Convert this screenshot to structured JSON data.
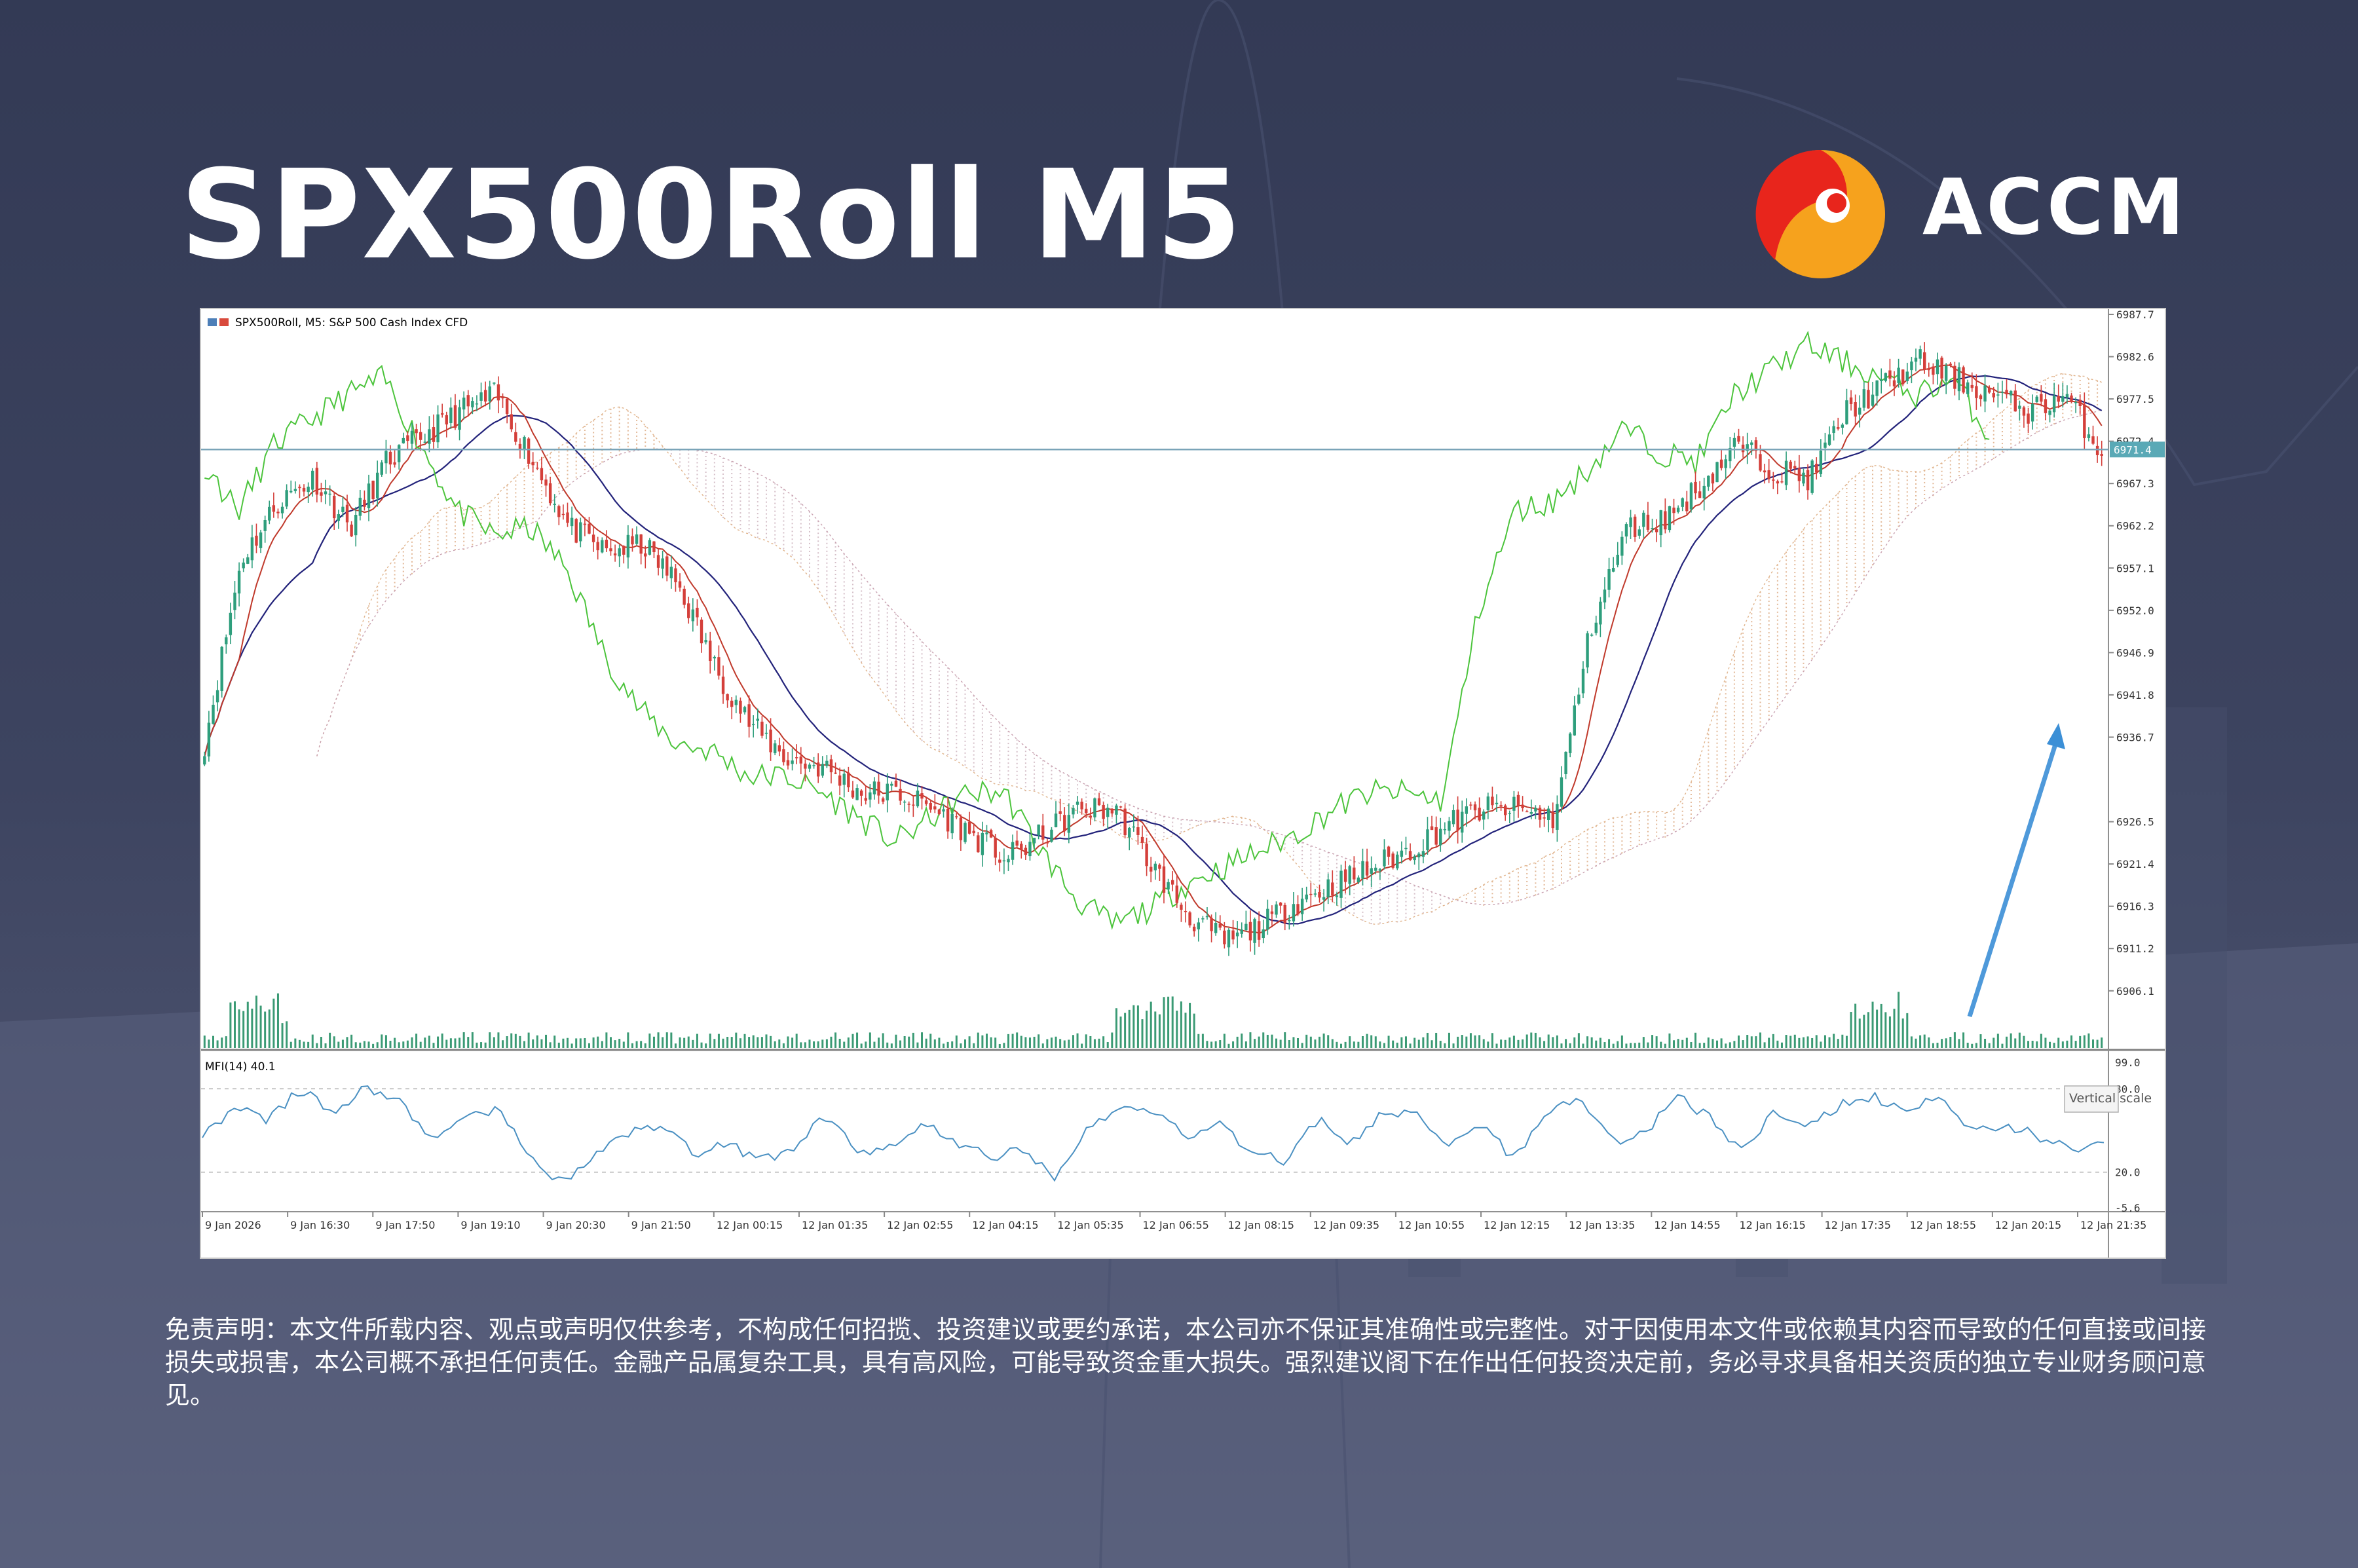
{
  "headline": "SPX500Roll M5",
  "brand": {
    "name": "ACCM",
    "logo_colors": [
      "#e8251c",
      "#f6a21d"
    ]
  },
  "chart_data": [
    {
      "type": "candlestick",
      "title": "SPX500Roll, M5:  S&P 500 Cash Index CFD",
      "price_axis": [
        "6987.7",
        "6982.6",
        "6977.5",
        "6972.4",
        "6967.3",
        "6962.2",
        "6957.1",
        "6952.0",
        "6946.9",
        "6941.8",
        "6936.7",
        "6926.5",
        "6921.4",
        "6916.3",
        "6911.2",
        "6906.1"
      ],
      "ylim": [
        6903.0,
        6987.7
      ],
      "current_price_label": "6971.4",
      "current_price": 6971.4,
      "time_axis": [
        "9 Jan 2026",
        "9 Jan 16:30",
        "9 Jan 17:50",
        "9 Jan 19:10",
        "9 Jan 20:30",
        "9 Jan 21:50",
        "12 Jan 00:15",
        "12 Jan 01:35",
        "12 Jan 02:55",
        "12 Jan 04:15",
        "12 Jan 05:35",
        "12 Jan 06:55",
        "12 Jan 08:15",
        "12 Jan 09:35",
        "12 Jan 10:55",
        "12 Jan 12:15",
        "12 Jan 13:35",
        "12 Jan 14:55",
        "12 Jan 16:15",
        "12 Jan 17:35",
        "12 Jan 18:55",
        "12 Jan 20:15",
        "12 Jan 21:35"
      ],
      "tooltip": "Vertical scale",
      "price_path": [
        6936,
        6958,
        6965,
        6968,
        6962,
        6970,
        6973,
        6976,
        6978,
        6970,
        6962,
        6959,
        6960,
        6955,
        6945,
        6938,
        6934,
        6933,
        6930,
        6930,
        6928,
        6925,
        6922,
        6925,
        6928,
        6928,
        6921,
        6915,
        6912,
        6914,
        6917,
        6919,
        6921,
        6923,
        6926,
        6928,
        6928,
        6927,
        6950,
        6962,
        6963,
        6967,
        6972,
        6969,
        6968,
        6976,
        6979,
        6982,
        6980,
        6978,
        6976,
        6978,
        6971
      ],
      "colors": {
        "up": "#2e9e7c",
        "down": "#d43f3a",
        "tenkan": "#c0392b",
        "kijun": "#22227a",
        "chikou": "#4cc43c",
        "cloud": "#d8a074",
        "arrow": "#3b8fd6"
      }
    },
    {
      "type": "line",
      "title": "MFI(14) 40.1",
      "y_axis": [
        "99.0",
        "80.0",
        "20.0",
        "-5.6"
      ],
      "ylim": [
        -5.6,
        99.0
      ],
      "levels": [
        80,
        20
      ],
      "values": [
        48,
        65,
        58,
        80,
        62,
        82,
        70,
        45,
        56,
        68,
        28,
        12,
        35,
        48,
        55,
        32,
        40,
        28,
        38,
        60,
        35,
        38,
        55,
        42,
        30,
        38,
        14,
        50,
        70,
        65,
        45,
        55,
        35,
        28,
        58,
        40,
        62,
        65,
        40,
        55,
        30,
        64,
        70,
        42,
        48,
        76,
        58,
        36,
        64,
        52,
        68,
        74,
        62,
        75,
        50,
        55,
        45,
        38,
        40
      ],
      "color": "#4a90c2"
    }
  ],
  "disclaimer": "免责声明：本文件所载内容、观点或声明仅供参考，不构成任何招揽、投资建议或要约承诺，本公司亦不保证其准确性或完整性。对于因使用本文件或依赖其内容而导致的任何直接或间接损失或损害，本公司概不承担任何责任。金融产品属复杂工具，具有高风险，可能导致资金重大损失。强烈建议阁下在作出任何投资决定前，务必寻求具备相关资质的独立专业财务顾问意见。"
}
